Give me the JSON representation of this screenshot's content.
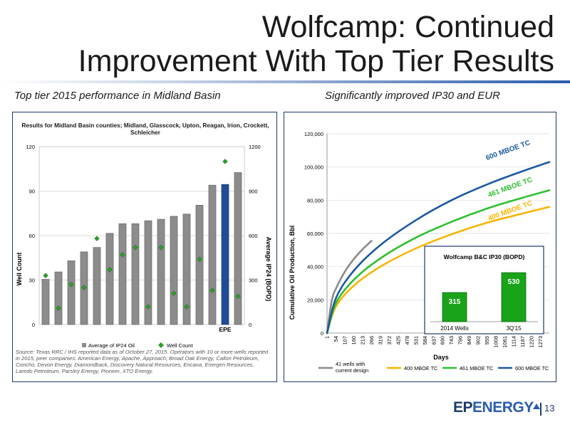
{
  "slide": {
    "title_line1": "Wolfcamp: Continued",
    "title_line2": "Improvement With Top Tier Results",
    "left_subtitle": "Top tier 2015 performance in Midland Basin",
    "right_subtitle": "Significantly improved IP30 and EUR",
    "source_note": "Source: Texas RRC / IHS reported data as of October 27, 2015. Operators with 10 or more wells reported in 2015, peer companies: American Energy, Apache, Approach, Broad Oak Energy, Callon Petroleum, Concho, Devon Energy, Diamondback, Discovery Natural Resources, Encana, Energen Resources, Laredo Petroleum, Parsley Energy, Pioneer, XTO Energy.",
    "logo_ep": "EP",
    "logo_energy": "ENERGY",
    "page_number": "13"
  },
  "colors": {
    "bar_gray": "#8c8c8c",
    "bar_epe": "#1f4e96",
    "marker_green": "#2ca02c",
    "curve_400": "#f7b500",
    "curve_461": "#2fbf2f",
    "curve_600": "#1b5aa0",
    "curve_current": "#8a8a8a",
    "inset_bar": "#19a319"
  },
  "chart_data": [
    {
      "type": "bar",
      "title": "Results for Midland Basin counties; Midland, Glasscock, Upton, Reagan, Irion, Crockett, Schleicher",
      "ylabel": "Well Count",
      "y2label": "Average IP24 (BOPD)",
      "ylim": [
        0,
        120
      ],
      "y2lim": [
        0,
        1200
      ],
      "yticks": [
        "0",
        "30",
        "60",
        "90",
        "120"
      ],
      "y2ticks": [
        "0",
        "300",
        "600",
        "900",
        "1200"
      ],
      "grid": true,
      "legend_position": "bottom",
      "highlight_label": "EPE",
      "highlight_index": 14,
      "series": [
        {
          "name": "Average of IP24 Oil",
          "axis": "right",
          "values": [
            305,
            355,
            430,
            490,
            520,
            615,
            680,
            680,
            700,
            710,
            730,
            745,
            805,
            940,
            945,
            1025
          ]
        },
        {
          "name": "Well Count",
          "axis": "left",
          "values": [
            33,
            11,
            27,
            25,
            58,
            37,
            47,
            52,
            12,
            52,
            21,
            12,
            44,
            23,
            110,
            19
          ]
        }
      ]
    },
    {
      "type": "line",
      "xlabel": "Days",
      "ylabel": "Cumulative Oil Production, Bbl",
      "ylim": [
        0,
        120000
      ],
      "xlim": [
        1,
        1326
      ],
      "yticks": [
        "0",
        "20,000",
        "40,000",
        "60,000",
        "80,000",
        "100,000",
        "120,000"
      ],
      "xticks": [
        "1",
        "54",
        "107",
        "160",
        "213",
        "266",
        "319",
        "372",
        "425",
        "478",
        "531",
        "584",
        "637",
        "690",
        "743",
        "796",
        "849",
        "902",
        "955",
        "1008",
        "1061",
        "1114",
        "1167",
        "1220",
        "1273"
      ],
      "legend_position": "bottom",
      "series": [
        {
          "name": "41 wells with current design",
          "x": [
            1,
            30,
            60,
            107,
            160,
            213,
            266
          ],
          "y": [
            0,
            20000,
            28000,
            37000,
            44500,
            50500,
            55500
          ]
        },
        {
          "name": "400 MBOE TC",
          "x": [
            1,
            54,
            160,
            319,
            531,
            743,
            955,
            1167,
            1326
          ],
          "y": [
            0,
            16000,
            28500,
            40000,
            51000,
            59500,
            66500,
            72000,
            76000
          ]
        },
        {
          "name": "461 MBOE TC",
          "x": [
            1,
            54,
            160,
            319,
            531,
            743,
            955,
            1167,
            1326
          ],
          "y": [
            0,
            18000,
            32000,
            45000,
            57500,
            67000,
            75000,
            81500,
            86000
          ]
        },
        {
          "name": "600 MBOE TC",
          "x": [
            1,
            54,
            160,
            319,
            531,
            743,
            955,
            1167,
            1326
          ],
          "y": [
            0,
            21000,
            37500,
            53000,
            68000,
            80000,
            89500,
            97500,
            103000
          ]
        }
      ],
      "annotations": [
        "600 MBOE TC",
        "461 MBOE TC",
        "400 MBOE TC"
      ]
    },
    {
      "type": "bar",
      "title": "Wolfcamp B&C IP30 (BOPD)",
      "categories": [
        "2014 Wells",
        "3Q'15"
      ],
      "values": [
        315,
        530
      ],
      "ylim": [
        0,
        600
      ]
    }
  ]
}
